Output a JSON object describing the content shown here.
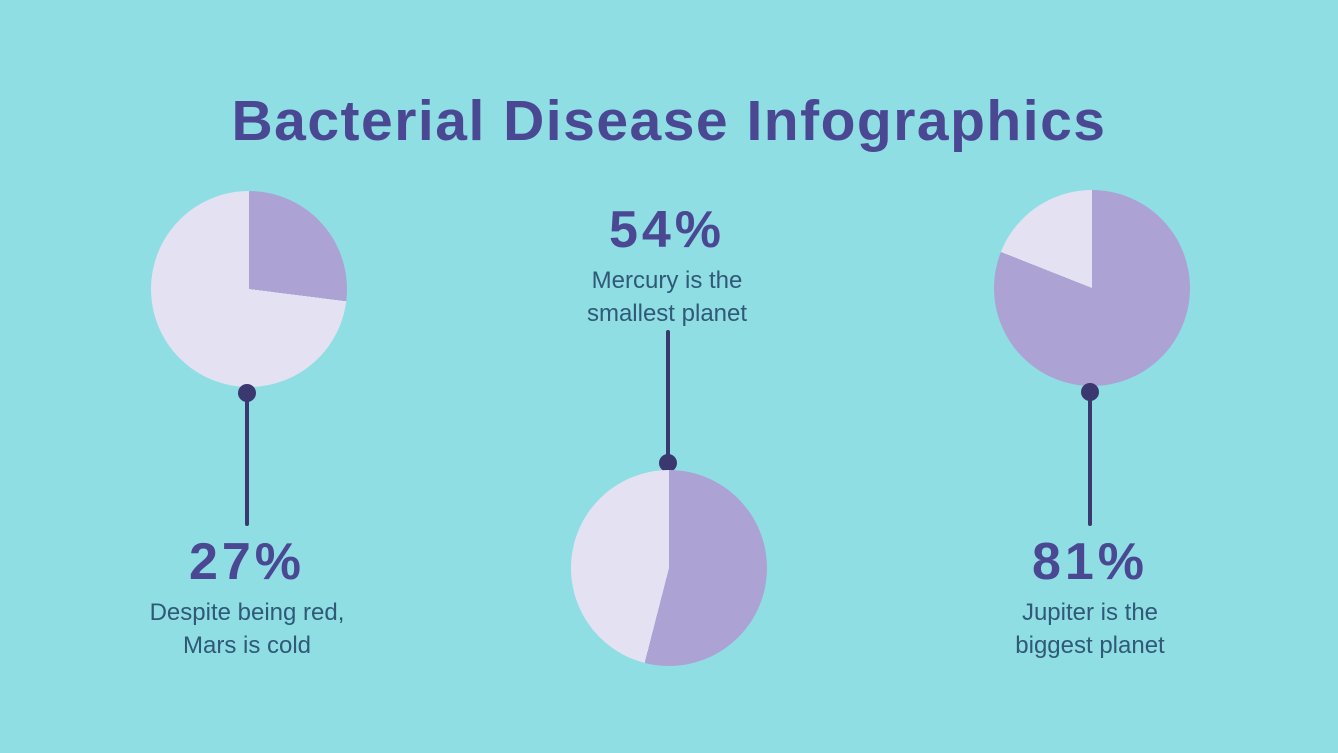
{
  "title": "Bacterial Disease Infographics",
  "colors": {
    "background": "#8FDEE4",
    "title": "#4A4793",
    "percent": "#4A4793",
    "caption": "#2F5977",
    "connector": "#3A386F",
    "pie_fill": "#E4E1F3",
    "pie_slice": "#ACA3D4"
  },
  "chart_data": [
    {
      "type": "pie",
      "title": "27%",
      "value": 27,
      "caption": "Despite being red,\nMars is cold",
      "slices": [
        {
          "label": "highlighted",
          "value": 27
        },
        {
          "label": "remainder",
          "value": 73
        }
      ],
      "start_angle": "12 o'clock, clockwise",
      "pie_position": "above-label",
      "legend": "none"
    },
    {
      "type": "pie",
      "title": "54%",
      "value": 54,
      "caption": "Mercury is the\nsmallest planet",
      "slices": [
        {
          "label": "highlighted",
          "value": 54
        },
        {
          "label": "remainder",
          "value": 46
        }
      ],
      "start_angle": "12 o'clock, clockwise",
      "pie_position": "below-label",
      "legend": "none"
    },
    {
      "type": "pie",
      "title": "81%",
      "value": 81,
      "caption": "Jupiter is the\nbiggest planet",
      "slices": [
        {
          "label": "highlighted",
          "value": 81
        },
        {
          "label": "remainder",
          "value": 19
        }
      ],
      "start_angle": "12 o'clock, clockwise",
      "pie_position": "above-label",
      "legend": "none"
    }
  ]
}
